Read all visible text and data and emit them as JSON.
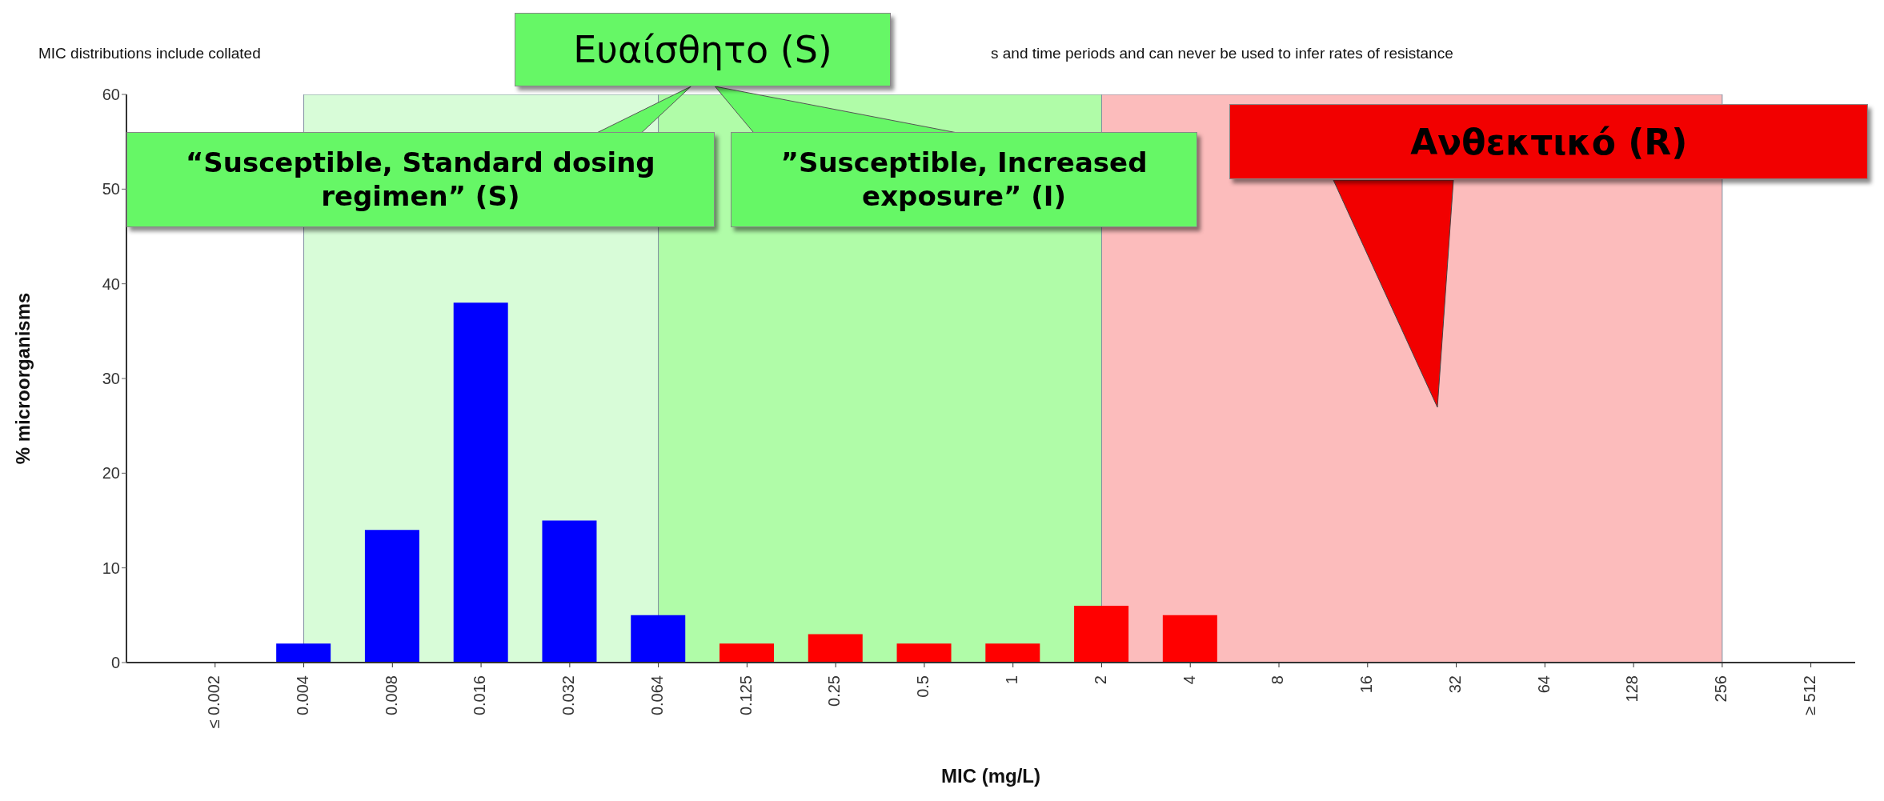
{
  "chart_data": {
    "type": "bar",
    "ylabel": "% microorganisms",
    "xlabel": "MIC (mg/L)",
    "categories": [
      "≤ 0.002",
      "0.004",
      "0.008",
      "0.016",
      "0.032",
      "0.064",
      "0.125",
      "0.25",
      "0.5",
      "1",
      "2",
      "4",
      "8",
      "16",
      "32",
      "64",
      "128",
      "256",
      "≥ 512"
    ],
    "values": [
      0,
      2,
      14,
      38,
      15,
      5,
      2,
      3,
      2,
      2,
      6,
      5,
      0,
      0,
      0,
      0,
      0,
      0,
      0
    ],
    "colors": [
      "#0000ff",
      "#0000ff",
      "#0000ff",
      "#0000ff",
      "#0000ff",
      "#0000ff",
      "#ff0000",
      "#ff0000",
      "#ff0000",
      "#ff0000",
      "#ff0000",
      "#ff0000",
      "#ff0000",
      "#ff0000",
      "#ff0000",
      "#ff0000",
      "#ff0000",
      "#ff0000",
      "#ff0000"
    ],
    "ylim": [
      0,
      60
    ],
    "yticks": [
      0,
      10,
      20,
      30,
      40,
      50,
      60
    ],
    "grid": false,
    "legend": false,
    "bands": [
      {
        "axis": "x",
        "from": "0.004",
        "to": "0.064",
        "label": "“Susceptible, Standard dosing regimen” (S)",
        "color": "#d8fcd8"
      },
      {
        "axis": "x",
        "from": "0.064",
        "to": "2",
        "label": "”Susceptible, Increased exposure” (I)",
        "color": "#b0fca8"
      },
      {
        "axis": "x",
        "from": "2",
        "to": "256",
        "label": "Ανθεκτικό (R)",
        "color": "#fcbcbc"
      }
    ],
    "annotations": [
      "MIC distributions include collated",
      "s and time periods and can never be used to infer rates of resistance",
      "Ευαίσθητο (S)"
    ]
  }
}
